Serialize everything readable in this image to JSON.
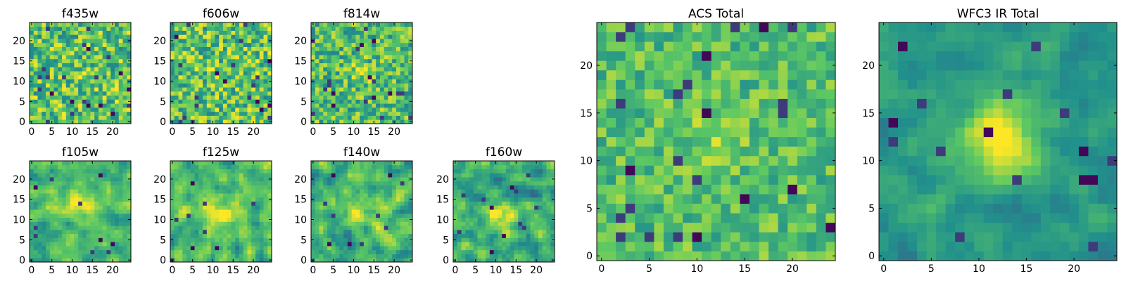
{
  "colormap": [
    "#440154",
    "#3b528b",
    "#21918c",
    "#5ec962",
    "#fde725"
  ],
  "chart_data": [
    {
      "type": "heatmap",
      "title": "f435w",
      "grid_size": 25,
      "noise": 0.55,
      "smooth": 0,
      "blob": {
        "x": 12,
        "y": 12,
        "sigma": 2.0,
        "amp": 0.05
      },
      "dark_spots": 22,
      "seed": 11,
      "x": {
        "range": [
          -0.5,
          24.5
        ],
        "ticks": [
          0,
          5,
          10,
          15,
          20
        ],
        "tick_labels": [
          "0",
          "5",
          "10",
          "15",
          "20"
        ]
      },
      "y": {
        "range": [
          -0.5,
          24.5
        ],
        "ticks": [
          0,
          5,
          10,
          15,
          20
        ],
        "tick_labels": [
          "0",
          "5",
          "10",
          "15",
          "20"
        ]
      }
    },
    {
      "type": "heatmap",
      "title": "f606w",
      "grid_size": 25,
      "noise": 0.55,
      "smooth": 0,
      "blob": {
        "x": 12,
        "y": 12,
        "sigma": 2.0,
        "amp": 0.06
      },
      "dark_spots": 22,
      "seed": 23,
      "x": {
        "range": [
          -0.5,
          24.5
        ],
        "ticks": [
          0,
          5,
          10,
          15,
          20
        ],
        "tick_labels": [
          "0",
          "5",
          "10",
          "15",
          "20"
        ]
      },
      "y": {
        "range": [
          -0.5,
          24.5
        ],
        "ticks": [
          0,
          5,
          10,
          15,
          20
        ],
        "tick_labels": [
          "0",
          "5",
          "10",
          "15",
          "20"
        ]
      }
    },
    {
      "type": "heatmap",
      "title": "f814w",
      "grid_size": 25,
      "noise": 0.5,
      "smooth": 0,
      "blob": {
        "x": 12,
        "y": 12,
        "sigma": 2.0,
        "amp": 0.15
      },
      "dark_spots": 20,
      "seed": 37,
      "x": {
        "range": [
          -0.5,
          24.5
        ],
        "ticks": [
          0,
          5,
          10,
          15,
          20
        ],
        "tick_labels": [
          "0",
          "5",
          "10",
          "15",
          "20"
        ]
      },
      "y": {
        "range": [
          -0.5,
          24.5
        ],
        "ticks": [
          0,
          5,
          10,
          15,
          20
        ],
        "tick_labels": [
          "0",
          "5",
          "10",
          "15",
          "20"
        ]
      }
    },
    {
      "type": "heatmap",
      "title": "f105w",
      "grid_size": 25,
      "noise": 0.5,
      "smooth": 1,
      "blob": {
        "x": 12,
        "y": 13,
        "sigma": 3.5,
        "amp": 0.3
      },
      "dark_spots": 10,
      "seed": 51,
      "x": {
        "range": [
          -0.5,
          24.5
        ],
        "ticks": [
          0,
          5,
          10,
          15,
          20
        ],
        "tick_labels": [
          "0",
          "5",
          "10",
          "15",
          "20"
        ]
      },
      "y": {
        "range": [
          -0.5,
          24.5
        ],
        "ticks": [
          0,
          5,
          10,
          15,
          20
        ],
        "tick_labels": [
          "0",
          "5",
          "10",
          "15",
          "20"
        ]
      }
    },
    {
      "type": "heatmap",
      "title": "f125w",
      "grid_size": 25,
      "noise": 0.55,
      "smooth": 1,
      "blob": {
        "x": 12,
        "y": 12,
        "sigma": 3.0,
        "amp": 0.2
      },
      "dark_spots": 10,
      "seed": 67,
      "x": {
        "range": [
          -0.5,
          24.5
        ],
        "ticks": [
          0,
          5,
          10,
          15,
          20
        ],
        "tick_labels": [
          "0",
          "5",
          "10",
          "15",
          "20"
        ]
      },
      "y": {
        "range": [
          -0.5,
          24.5
        ],
        "ticks": [
          0,
          5,
          10,
          15,
          20
        ],
        "tick_labels": [
          "0",
          "5",
          "10",
          "15",
          "20"
        ]
      }
    },
    {
      "type": "heatmap",
      "title": "f140w",
      "grid_size": 25,
      "noise": 0.55,
      "smooth": 1,
      "blob": {
        "x": 12,
        "y": 12,
        "sigma": 3.0,
        "amp": 0.25
      },
      "dark_spots": 10,
      "seed": 79,
      "x": {
        "range": [
          -0.5,
          24.5
        ],
        "ticks": [
          0,
          5,
          10,
          15,
          20
        ],
        "tick_labels": [
          "0",
          "5",
          "10",
          "15",
          "20"
        ]
      },
      "y": {
        "range": [
          -0.5,
          24.5
        ],
        "ticks": [
          0,
          5,
          10,
          15,
          20
        ],
        "tick_labels": [
          "0",
          "5",
          "10",
          "15",
          "20"
        ]
      }
    },
    {
      "type": "heatmap",
      "title": "f160w",
      "grid_size": 25,
      "noise": 0.55,
      "smooth": 1,
      "blob": {
        "x": 12,
        "y": 11,
        "sigma": 2.5,
        "amp": 0.35
      },
      "dark_spots": 12,
      "seed": 97,
      "x": {
        "range": [
          -0.5,
          24.5
        ],
        "ticks": [
          0,
          5,
          10,
          15,
          20
        ],
        "tick_labels": [
          "0",
          "5",
          "10",
          "15",
          "20"
        ]
      },
      "y": {
        "range": [
          -0.5,
          24.5
        ],
        "ticks": [
          0,
          5,
          10,
          15,
          20
        ],
        "tick_labels": [
          "0",
          "5",
          "10",
          "15",
          "20"
        ]
      }
    },
    {
      "type": "heatmap",
      "title": "ACS Total",
      "grid_size": 25,
      "noise": 0.35,
      "smooth": 0,
      "blob": {
        "x": 12,
        "y": 12,
        "sigma": 2.5,
        "amp": 0.12
      },
      "dark_spots": 24,
      "seed": 113,
      "x": {
        "range": [
          -0.5,
          24.5
        ],
        "ticks": [
          0,
          5,
          10,
          15,
          20
        ],
        "tick_labels": [
          "0",
          "5",
          "10",
          "15",
          "20"
        ]
      },
      "y": {
        "range": [
          -0.5,
          24.5
        ],
        "ticks": [
          0,
          5,
          10,
          15,
          20
        ],
        "tick_labels": [
          "0",
          "5",
          "10",
          "15",
          "20"
        ]
      }
    },
    {
      "type": "heatmap",
      "title": "WFC3 IR Total",
      "grid_size": 25,
      "noise": 0.3,
      "smooth": 1,
      "blob": {
        "x": 12,
        "y": 12,
        "sigma": 2.8,
        "amp": 0.55
      },
      "dark_spots": 16,
      "seed": 131,
      "x": {
        "range": [
          -0.5,
          24.5
        ],
        "ticks": [
          0,
          5,
          10,
          15,
          20
        ],
        "tick_labels": [
          "0",
          "5",
          "10",
          "15",
          "20"
        ]
      },
      "y": {
        "range": [
          -0.5,
          24.5
        ],
        "ticks": [
          0,
          5,
          10,
          15,
          20
        ],
        "tick_labels": [
          "0",
          "5",
          "10",
          "15",
          "20"
        ]
      }
    }
  ]
}
